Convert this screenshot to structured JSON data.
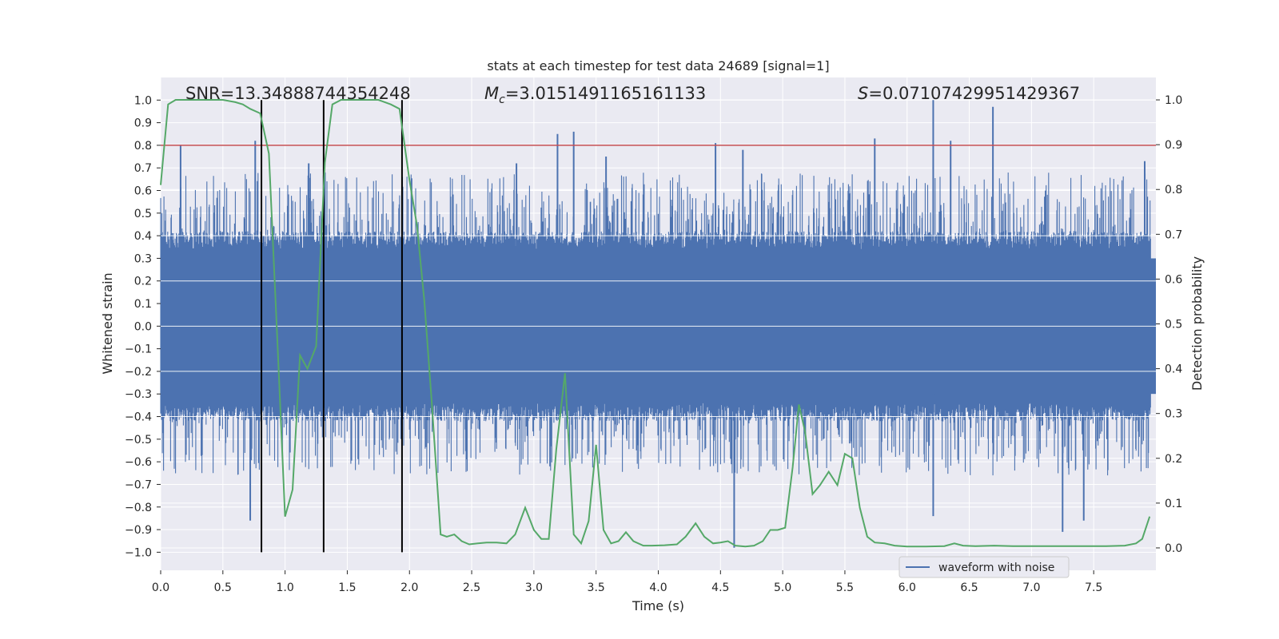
{
  "chart_data": {
    "type": "line",
    "title": "stats at each timestep for test data 24689 [signal=1]",
    "xlabel": "Time (s)",
    "ylabel_left": "Whitened strain",
    "ylabel_right": "Detection probability",
    "xlim": [
      0.0,
      8.0
    ],
    "ylim_left": [
      -1.08,
      1.1
    ],
    "ylim_right": [
      -0.05,
      1.05
    ],
    "x_ticks": [
      0.0,
      0.5,
      1.0,
      1.5,
      2.0,
      2.5,
      3.0,
      3.5,
      4.0,
      4.5,
      5.0,
      5.5,
      6.0,
      6.5,
      7.0,
      7.5
    ],
    "x_tick_labels": [
      "0.0",
      "0.5",
      "1.0",
      "1.5",
      "2.0",
      "2.5",
      "3.0",
      "3.5",
      "4.0",
      "4.5",
      "5.0",
      "5.5",
      "6.0",
      "6.5",
      "7.0",
      "7.5"
    ],
    "y_left_ticks": [
      1.0,
      0.9,
      0.8,
      0.7,
      0.6,
      0.5,
      0.4,
      0.3,
      0.2,
      0.1,
      0.0,
      -0.1,
      -0.2,
      -0.3,
      -0.4,
      -0.5,
      -0.6,
      -0.7,
      -0.8,
      -0.9,
      -1.0
    ],
    "y_left_tick_labels": [
      "1.0",
      "0.9",
      "0.8",
      "0.7",
      "0.6",
      "0.5",
      "0.4",
      "0.3",
      "0.2",
      "0.1",
      "0.0",
      "−0.1",
      "−0.2",
      "−0.3",
      "−0.4",
      "−0.5",
      "−0.6",
      "−0.7",
      "−0.8",
      "−0.9",
      "−1.0"
    ],
    "y_right_ticks": [
      1.0,
      0.9,
      0.8,
      0.7,
      0.6,
      0.5,
      0.4,
      0.3,
      0.2,
      0.1,
      0.0
    ],
    "y_right_tick_labels": [
      "1.0",
      "0.9",
      "0.8",
      "0.7",
      "0.6",
      "0.5",
      "0.4",
      "0.3",
      "0.2",
      "0.1",
      "0.0"
    ],
    "annotations": {
      "snr": "SNR=13.34888744354248",
      "mc_symbol": "M",
      "mc_sub": "c",
      "mc_value": "=3.0151491165161133",
      "s_symbol": "S",
      "s_value": "=0.07107429951429367"
    },
    "legend": {
      "label": "waveform with noise",
      "placement": "lower-right"
    },
    "threshold_line": {
      "y": 0.8,
      "color": "#c44e52"
    },
    "vertical_lines_x": [
      0.81,
      1.31,
      1.94
    ],
    "waveform": {
      "name": "waveform with noise",
      "color": "#4c72b0",
      "core_amplitude": 0.34,
      "representative_peaks": [
        [
          0.16,
          0.8
        ],
        [
          0.76,
          0.82
        ],
        [
          0.72,
          -0.86
        ],
        [
          1.19,
          0.72
        ],
        [
          1.32,
          0.68
        ],
        [
          2.86,
          0.72
        ],
        [
          3.19,
          0.85
        ],
        [
          3.32,
          0.86
        ],
        [
          3.58,
          0.75
        ],
        [
          4.46,
          0.81
        ],
        [
          4.61,
          -0.98
        ],
        [
          4.68,
          0.78
        ],
        [
          5.74,
          0.83
        ],
        [
          6.21,
          1.0
        ],
        [
          6.21,
          -0.84
        ],
        [
          6.35,
          0.82
        ],
        [
          6.69,
          0.97
        ],
        [
          7.25,
          -0.91
        ],
        [
          7.42,
          -0.86
        ],
        [
          7.91,
          0.73
        ]
      ]
    },
    "detection_probability": {
      "color": "#55a868",
      "x": [
        0.0,
        0.06,
        0.12,
        0.2,
        0.3,
        0.4,
        0.5,
        0.6,
        0.66,
        0.72,
        0.8,
        0.87,
        0.94,
        1.0,
        1.06,
        1.12,
        1.18,
        1.25,
        1.32,
        1.38,
        1.45,
        1.55,
        1.65,
        1.75,
        1.85,
        1.92,
        2.0,
        2.06,
        2.12,
        2.18,
        2.25,
        2.3,
        2.36,
        2.42,
        2.48,
        2.55,
        2.62,
        2.7,
        2.78,
        2.85,
        2.93,
        3.0,
        3.06,
        3.12,
        3.18,
        3.25,
        3.32,
        3.38,
        3.44,
        3.5,
        3.56,
        3.62,
        3.68,
        3.74,
        3.8,
        3.88,
        3.95,
        4.05,
        4.15,
        4.22,
        4.3,
        4.37,
        4.44,
        4.5,
        4.56,
        4.62,
        4.7,
        4.77,
        4.84,
        4.9,
        4.96,
        5.02,
        5.08,
        5.13,
        5.18,
        5.24,
        5.3,
        5.37,
        5.44,
        5.5,
        5.56,
        5.62,
        5.68,
        5.74,
        5.82,
        5.9,
        6.0,
        6.15,
        6.3,
        6.38,
        6.45,
        6.55,
        6.7,
        6.85,
        7.0,
        7.15,
        7.3,
        7.45,
        7.6,
        7.75,
        7.84,
        7.89,
        7.95
      ],
      "y": [
        0.81,
        0.99,
        1.0,
        1.0,
        1.0,
        1.0,
        1.0,
        0.995,
        0.99,
        0.98,
        0.97,
        0.88,
        0.45,
        0.07,
        0.13,
        0.43,
        0.4,
        0.45,
        0.86,
        0.99,
        1.0,
        1.0,
        1.0,
        1.0,
        0.99,
        0.98,
        0.82,
        0.72,
        0.55,
        0.32,
        0.03,
        0.025,
        0.03,
        0.015,
        0.008,
        0.01,
        0.012,
        0.012,
        0.01,
        0.03,
        0.09,
        0.04,
        0.02,
        0.02,
        0.22,
        0.39,
        0.03,
        0.01,
        0.06,
        0.23,
        0.04,
        0.01,
        0.015,
        0.035,
        0.015,
        0.005,
        0.005,
        0.006,
        0.008,
        0.025,
        0.055,
        0.025,
        0.01,
        0.012,
        0.015,
        0.005,
        0.003,
        0.005,
        0.015,
        0.04,
        0.04,
        0.045,
        0.18,
        0.32,
        0.26,
        0.12,
        0.14,
        0.17,
        0.14,
        0.21,
        0.2,
        0.09,
        0.025,
        0.012,
        0.01,
        0.005,
        0.003,
        0.003,
        0.004,
        0.01,
        0.005,
        0.004,
        0.005,
        0.004,
        0.004,
        0.004,
        0.004,
        0.004,
        0.004,
        0.005,
        0.01,
        0.02,
        0.07
      ]
    }
  }
}
